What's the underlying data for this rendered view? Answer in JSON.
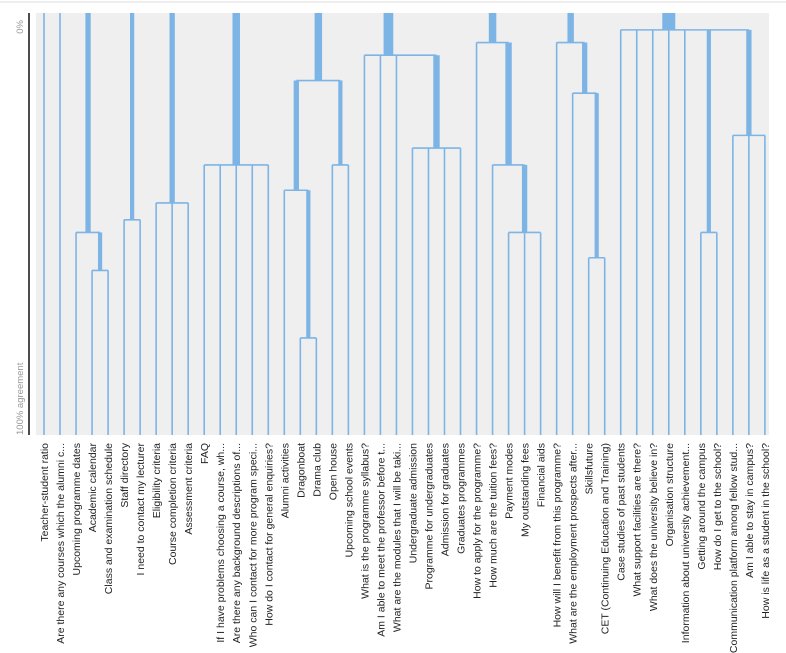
{
  "chart_data": {
    "type": "dendrogram",
    "axis": {
      "top_label": "0%",
      "bottom_label": "100% agreement",
      "range": [
        0,
        100
      ]
    },
    "colors": {
      "line": "#7db4e6",
      "background": "#efefef"
    },
    "leaves": [
      "Teacher-student ratio",
      "Are there any courses which the alumni c...",
      "Upcoming programme dates",
      "Academic calendar",
      "Class and examination schedule",
      "Staff directory",
      "I need to contact my lecturer",
      "Eligibility criteria",
      "Course completion criteria",
      "Assessment criteria",
      "FAQ",
      "If I have problems choosing a course, wh...",
      "Are there any background descriptions of...",
      "Who can I contact for more program speci...",
      "How do I contact for general enquiries?",
      "Alumni activities",
      "Dragonboat",
      "Drama club",
      "Open house",
      "Upcoming school events",
      "What is the programme syllabus?",
      "Am I able to meet the professor before t...",
      "What are the modules that I will be taki...",
      "Undergraduate admission",
      "Programme for undergraduates",
      "Admission for graduates",
      "Graduates programmes",
      "How to apply for the programme?",
      "How much are the tuition fees?",
      "Payment modes",
      "My outstanding fees",
      "Financial aids",
      "How will I benefit from this programme?",
      "What are the employment prospects after...",
      "Skillsfuture",
      "CET (Continuing Education and Training)",
      "Case studies of past students",
      "What support facilities are there?",
      "What does the university believe in?",
      "Organisation structure",
      "Information about university achievement...",
      "Getting around the campus",
      "How do I get to the school?",
      "Communication platform among fellow stud...",
      "Am I able to stay in campus?",
      "How is life as a student in the school?"
    ],
    "tree": {
      "agreement": 0,
      "children": [
        0,
        1,
        {
          "agreement": 52,
          "children": [
            2,
            {
              "agreement": 61,
              "children": [
                3,
                4
              ]
            }
          ]
        },
        {
          "agreement": 49,
          "children": [
            5,
            6
          ]
        },
        {
          "agreement": 45,
          "children": [
            7,
            8,
            9
          ]
        },
        {
          "agreement": 36,
          "children": [
            10,
            11,
            12,
            13,
            14
          ]
        },
        {
          "agreement": 16,
          "children": [
            {
              "agreement": 42,
              "children": [
                15,
                {
                  "agreement": 77,
                  "children": [
                    16,
                    17
                  ]
                }
              ]
            },
            {
              "agreement": 36,
              "children": [
                18,
                19
              ]
            }
          ]
        },
        {
          "agreement": 10,
          "children": [
            20,
            21,
            22,
            {
              "agreement": 32,
              "children": [
                23,
                24,
                25,
                26
              ]
            }
          ]
        },
        {
          "agreement": 7,
          "children": [
            27,
            {
              "agreement": 36,
              "children": [
                28,
                {
                  "agreement": 52,
                  "children": [
                    29,
                    30,
                    31
                  ]
                }
              ]
            }
          ]
        },
        {
          "agreement": 7,
          "children": [
            32,
            {
              "agreement": 19,
              "children": [
                33,
                {
                  "agreement": 58,
                  "children": [
                    34,
                    35
                  ]
                }
              ]
            }
          ]
        },
        {
          "agreement": 4,
          "children": [
            36,
            37,
            38,
            39,
            40,
            {
              "agreement": 52,
              "children": [
                41,
                42
              ]
            },
            {
              "agreement": 29,
              "children": [
                43,
                44,
                45
              ]
            }
          ]
        }
      ]
    }
  }
}
